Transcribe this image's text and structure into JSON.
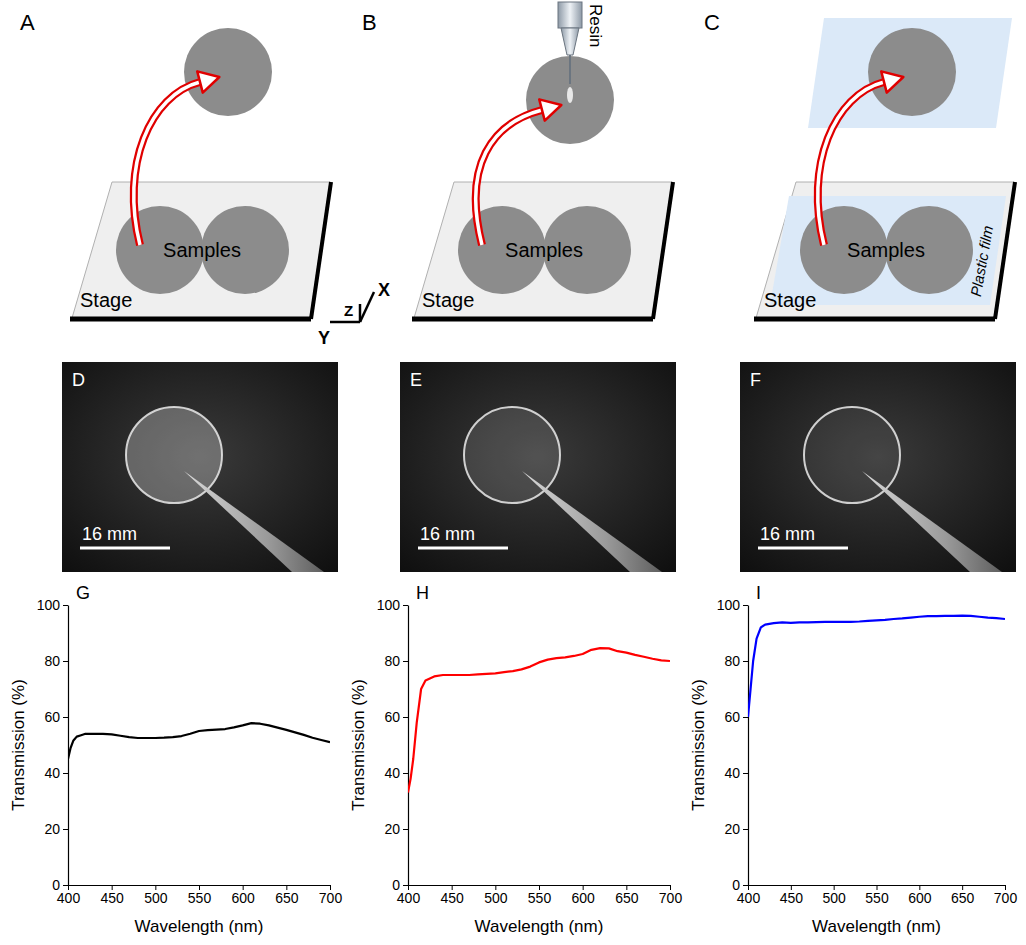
{
  "diagrams": [
    {
      "panel": "A",
      "stage": "Stage",
      "samples": "Samples"
    },
    {
      "panel": "B",
      "stage": "Stage",
      "samples": "Samples",
      "resin": "Resin"
    },
    {
      "panel": "C",
      "stage": "Stage",
      "samples": "Samples",
      "film": "Plastic film"
    }
  ],
  "axes_icon": {
    "x": "X",
    "y": "Y",
    "z": "Z"
  },
  "photos": [
    {
      "panel": "D",
      "scale_bar": "16 mm"
    },
    {
      "panel": "E",
      "scale_bar": "16 mm"
    },
    {
      "panel": "F",
      "scale_bar": "16 mm"
    }
  ],
  "chart_data": [
    {
      "type": "line",
      "panel": "G",
      "x_label": "Wavelength (nm)",
      "y_label": "Transmission (%)",
      "xlim": [
        400,
        700
      ],
      "xticks": [
        400,
        450,
        500,
        550,
        600,
        650,
        700
      ],
      "ylim": [
        0,
        100
      ],
      "yticks": [
        0,
        20,
        40,
        60,
        80,
        100
      ],
      "x": [
        400,
        403,
        406,
        410,
        415,
        420,
        430,
        440,
        450,
        460,
        470,
        480,
        490,
        500,
        510,
        520,
        530,
        540,
        550,
        560,
        570,
        580,
        590,
        600,
        610,
        620,
        630,
        640,
        650,
        660,
        670,
        680,
        690,
        700
      ],
      "series": [
        {
          "color": "#000000",
          "values": [
            45,
            49,
            51.5,
            53,
            53.5,
            54,
            54,
            54,
            53.8,
            53.3,
            52.8,
            52.5,
            52.5,
            52.5,
            52.6,
            52.8,
            53.2,
            54,
            55,
            55.3,
            55.5,
            55.7,
            56.3,
            57,
            57.8,
            57.6,
            57,
            56.2,
            55.4,
            54.5,
            53.6,
            52.6,
            51.8,
            51
          ]
        }
      ]
    },
    {
      "type": "line",
      "panel": "H",
      "x_label": "Wavelength (nm)",
      "y_label": "Transmission (%)",
      "xlim": [
        400,
        700
      ],
      "xticks": [
        400,
        450,
        500,
        550,
        600,
        650,
        700
      ],
      "ylim": [
        0,
        100
      ],
      "yticks": [
        0,
        20,
        40,
        60,
        80,
        100
      ],
      "x": [
        400,
        403,
        406,
        410,
        415,
        420,
        430,
        440,
        450,
        460,
        470,
        480,
        490,
        500,
        510,
        520,
        530,
        540,
        550,
        560,
        570,
        580,
        590,
        600,
        610,
        620,
        630,
        640,
        650,
        660,
        670,
        680,
        690,
        700
      ],
      "series": [
        {
          "color": "#ff0000",
          "values": [
            33,
            38,
            45,
            58,
            70,
            73,
            74.5,
            75,
            75,
            75,
            75,
            75.2,
            75.4,
            75.6,
            76,
            76.4,
            77,
            78,
            79.5,
            80.5,
            81,
            81.3,
            81.8,
            82.5,
            84,
            84.6,
            84.5,
            83.5,
            83,
            82.2,
            81.5,
            80.8,
            80.2,
            80
          ]
        }
      ]
    },
    {
      "type": "line",
      "panel": "I",
      "x_label": "Wavelength (nm)",
      "y_label": "Transmission (%)",
      "xlim": [
        400,
        700
      ],
      "xticks": [
        400,
        450,
        500,
        550,
        600,
        650,
        700
      ],
      "ylim": [
        0,
        100
      ],
      "yticks": [
        0,
        20,
        40,
        60,
        80,
        100
      ],
      "x": [
        400,
        403,
        406,
        410,
        415,
        420,
        430,
        440,
        450,
        460,
        470,
        480,
        490,
        500,
        510,
        520,
        530,
        540,
        550,
        560,
        570,
        580,
        590,
        600,
        610,
        620,
        630,
        640,
        650,
        660,
        670,
        680,
        690,
        700
      ],
      "series": [
        {
          "color": "#0000ff",
          "values": [
            60,
            70,
            80,
            88,
            92,
            93,
            93.5,
            93.8,
            93.6,
            93.8,
            93.8,
            93.9,
            94,
            94,
            94,
            94,
            94.1,
            94.3,
            94.5,
            94.7,
            95,
            95.2,
            95.5,
            95.8,
            96,
            96,
            96.1,
            96.1,
            96.2,
            96.1,
            95.8,
            95.5,
            95.3,
            95
          ]
        }
      ]
    }
  ]
}
